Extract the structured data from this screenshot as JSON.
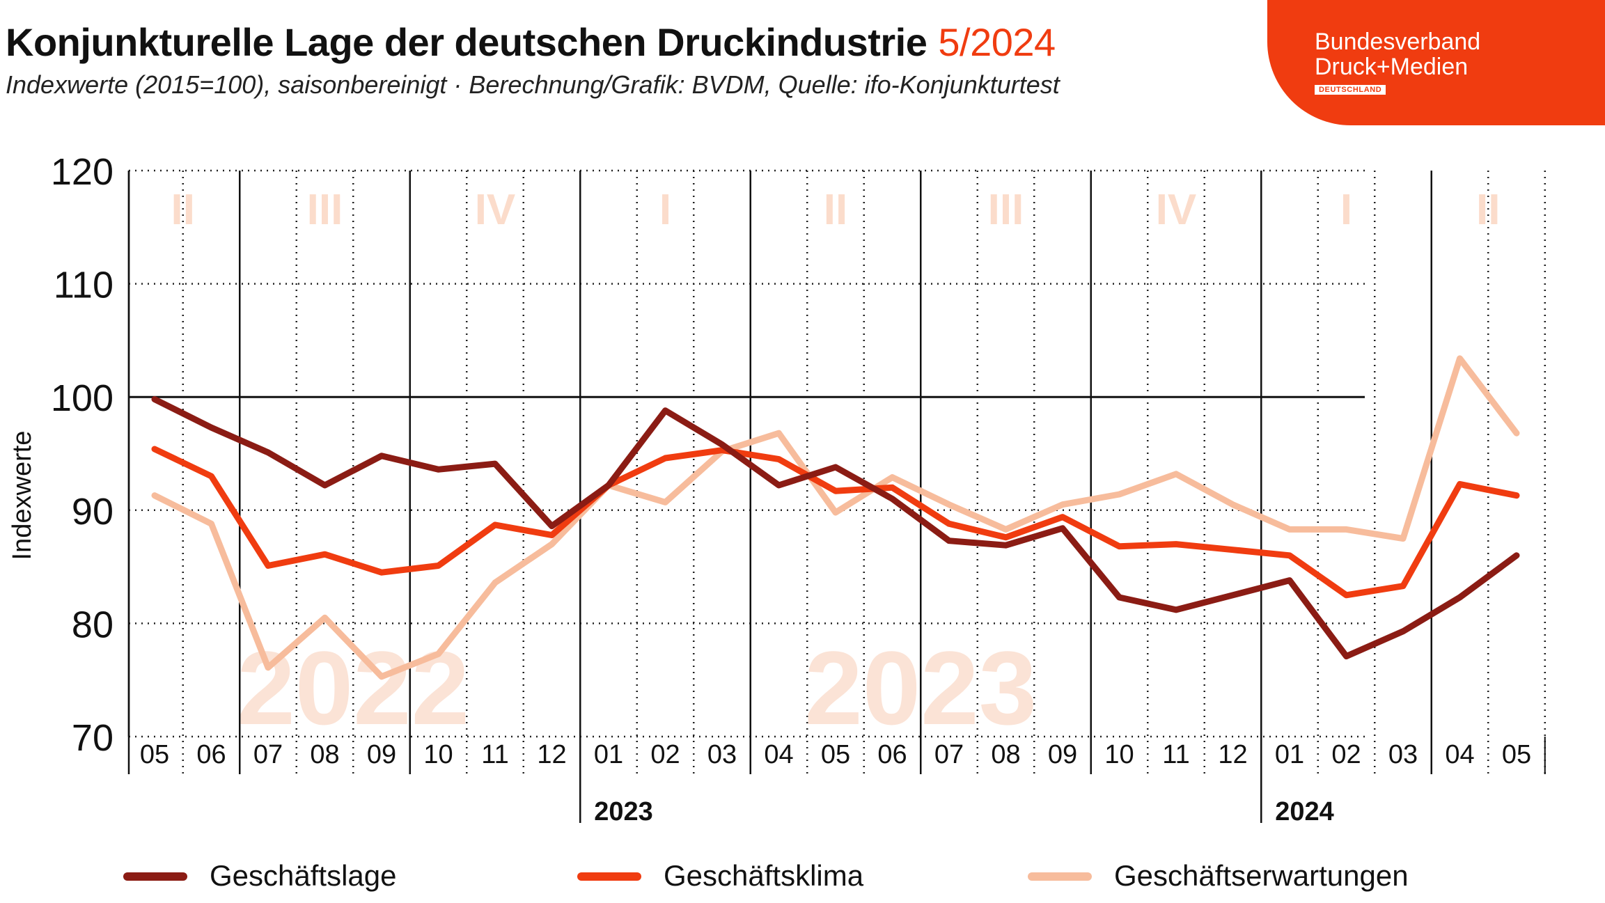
{
  "header": {
    "title": "Konjunkturelle Lage der deutschen Druckindustrie",
    "title_highlight": "5/2024",
    "subtitle": "Indexwerte (2015=100), saisonbereinigt · Berechnung/Grafik: BVDM, Quelle: ifo-Konjunkturtest"
  },
  "brand": {
    "line1": "Bundesverband",
    "line2": "Druck+Medien",
    "line3": "DEUTSCHLAND",
    "color": "#f03c10"
  },
  "chart_data": {
    "type": "line",
    "ylabel": "Indexwerte",
    "xlabel": "",
    "ylim": [
      70,
      120
    ],
    "yticks": [
      70,
      80,
      90,
      100,
      110,
      120
    ],
    "reference_line": 100,
    "grid": true,
    "legend_position": "bottom",
    "categories": [
      "05",
      "06",
      "07",
      "08",
      "09",
      "10",
      "11",
      "12",
      "01",
      "02",
      "03",
      "04",
      "05",
      "06",
      "07",
      "08",
      "09",
      "10",
      "11",
      "12",
      "01",
      "02",
      "03",
      "04",
      "05"
    ],
    "quarters": [
      {
        "label": "II",
        "start": 0,
        "end": 1
      },
      {
        "label": "III",
        "start": 2,
        "end": 4
      },
      {
        "label": "IV",
        "start": 5,
        "end": 7
      },
      {
        "label": "I",
        "start": 8,
        "end": 10
      },
      {
        "label": "II",
        "start": 11,
        "end": 13
      },
      {
        "label": "III",
        "start": 14,
        "end": 16
      },
      {
        "label": "IV",
        "start": 17,
        "end": 19
      },
      {
        "label": "I",
        "start": 20,
        "end": 22
      },
      {
        "label": "II",
        "start": 23,
        "end": 24
      }
    ],
    "year_labels": [
      {
        "label": "2023",
        "start_index": 8
      },
      {
        "label": "2024",
        "start_index": 20
      }
    ],
    "watermarks": [
      {
        "label": "2022",
        "start": 0,
        "end": 7
      },
      {
        "label": "2023",
        "start": 8,
        "end": 19
      }
    ],
    "series": [
      {
        "name": "Geschäftslage",
        "color": "#8b1c14",
        "values": [
          99.8,
          97.3,
          95.1,
          92.2,
          94.8,
          93.6,
          94.1,
          88.6,
          92.2,
          98.8,
          95.8,
          92.2,
          93.8,
          91.0,
          87.3,
          86.9,
          88.4,
          82.3,
          81.2,
          82.5,
          83.8,
          77.1,
          79.3,
          82.3,
          86.0
        ]
      },
      {
        "name": "Geschäftsklima",
        "color": "#f03c10",
        "values": [
          95.4,
          93.0,
          85.1,
          86.1,
          84.5,
          85.1,
          88.7,
          87.8,
          92.2,
          94.6,
          95.3,
          94.5,
          91.7,
          92.0,
          88.8,
          87.6,
          89.4,
          86.8,
          87.0,
          86.5,
          86.0,
          82.5,
          83.3,
          92.3,
          91.3
        ]
      },
      {
        "name": "Geschäftserwartungen",
        "color": "#f7bc9c",
        "values": [
          91.3,
          88.8,
          76.1,
          80.5,
          75.3,
          77.3,
          83.6,
          87.0,
          92.2,
          90.7,
          95.2,
          96.8,
          89.8,
          92.9,
          90.5,
          88.3,
          90.5,
          91.4,
          93.2,
          90.5,
          88.3,
          88.3,
          87.5,
          103.4,
          96.8
        ]
      }
    ]
  }
}
